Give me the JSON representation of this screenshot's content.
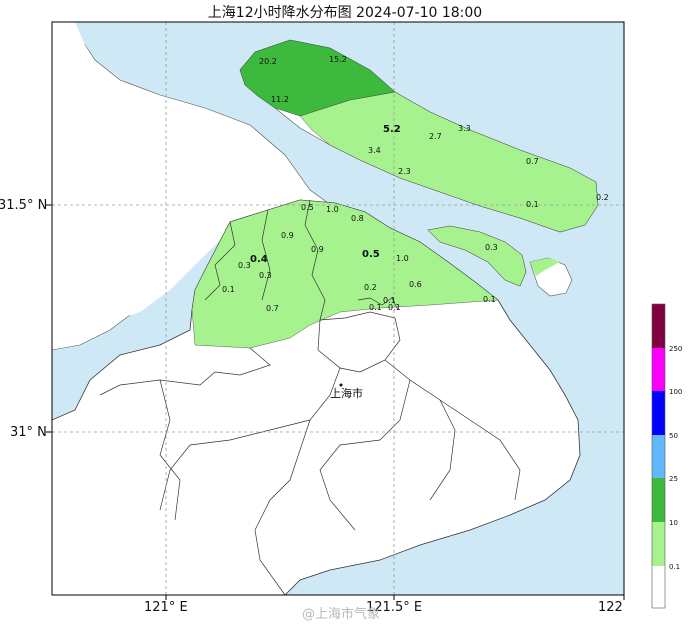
{
  "title": "上海12小时降水分布图 2024-07-10 18:00",
  "city_label": "上海市",
  "watermark": "@上海市气象",
  "axes": {
    "y_labels": [
      "31.5° N",
      "31° N"
    ],
    "x_labels": [
      "121° E",
      "121.5° E",
      "122"
    ]
  },
  "stations": [
    {
      "value": "20.2"
    },
    {
      "value": "15.2"
    },
    {
      "value": "11.2"
    },
    {
      "value": "5.2",
      "bold": true
    },
    {
      "value": "3.3"
    },
    {
      "value": "2.7"
    },
    {
      "value": "3.4"
    },
    {
      "value": "2.3"
    },
    {
      "value": "0.7"
    },
    {
      "value": "0.1"
    },
    {
      "value": "0.2"
    },
    {
      "value": "0.5"
    },
    {
      "value": "1.0"
    },
    {
      "value": "0.8"
    },
    {
      "value": "0.9"
    },
    {
      "value": "0.9"
    },
    {
      "value": "0.4",
      "bold": true
    },
    {
      "value": "0.3"
    },
    {
      "value": "0.3"
    },
    {
      "value": "0.5",
      "bold": true
    },
    {
      "value": "1.0"
    },
    {
      "value": "0.2"
    },
    {
      "value": "0.1"
    },
    {
      "value": "0.6"
    },
    {
      "value": "0.1"
    },
    {
      "value": "0.1"
    },
    {
      "value": "0.1"
    },
    {
      "value": "0.7"
    },
    {
      "value": "0.3"
    },
    {
      "value": "0.1"
    }
  ],
  "colorbar": {
    "levels": [
      "0.1",
      "10",
      "25",
      "50",
      "100",
      "250"
    ],
    "colors": [
      "#ffffff",
      "#a6f28f",
      "#3dba3d",
      "#61b8ff",
      "#0000ff",
      "#fa00fa",
      "#800040"
    ]
  },
  "colors": {
    "water": "#cfe8f5",
    "land": "#ffffff",
    "rain_light": "#a6f28f",
    "rain_moderate": "#3dba3d"
  }
}
